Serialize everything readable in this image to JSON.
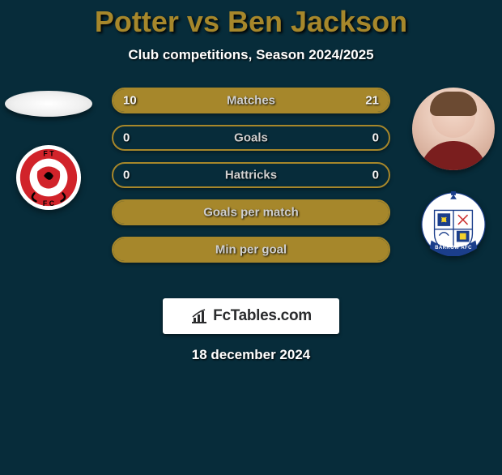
{
  "title": "Potter vs Ben Jackson",
  "subtitle": "Club competitions, Season 2024/2025",
  "date": "18 december 2024",
  "watermark": {
    "text": "FcTables.com"
  },
  "colors": {
    "accent": "#a6872b",
    "bg": "#072c3a",
    "text": "#ffffff"
  },
  "left": {
    "player_name": "Potter",
    "player_has_photo": false,
    "club_name": "Fleetwood Town",
    "club_badge": {
      "shape": "circle",
      "bg": "#ffffff",
      "primary": "#d1232a",
      "secondary": "#000000",
      "letters": "FTFC"
    }
  },
  "right": {
    "player_name": "Ben Jackson",
    "player_has_photo": true,
    "club_name": "Barrow",
    "club_badge": {
      "shape": "shield-round",
      "bg": "#ffffff",
      "primary": "#1b3e8b",
      "secondary": "#f4d22b",
      "banner_text": "BARROW AFC"
    }
  },
  "stats": [
    {
      "label": "Matches",
      "left_val": "10",
      "right_val": "21",
      "left_fill_pct": 32,
      "right_fill_pct": 68
    },
    {
      "label": "Goals",
      "left_val": "0",
      "right_val": "0",
      "left_fill_pct": 0,
      "right_fill_pct": 0
    },
    {
      "label": "Hattricks",
      "left_val": "0",
      "right_val": "0",
      "left_fill_pct": 0,
      "right_fill_pct": 0
    },
    {
      "label": "Goals per match",
      "left_val": "",
      "right_val": "",
      "left_fill_pct": 100,
      "right_fill_pct": 0
    },
    {
      "label": "Min per goal",
      "left_val": "",
      "right_val": "",
      "left_fill_pct": 100,
      "right_fill_pct": 0
    }
  ]
}
